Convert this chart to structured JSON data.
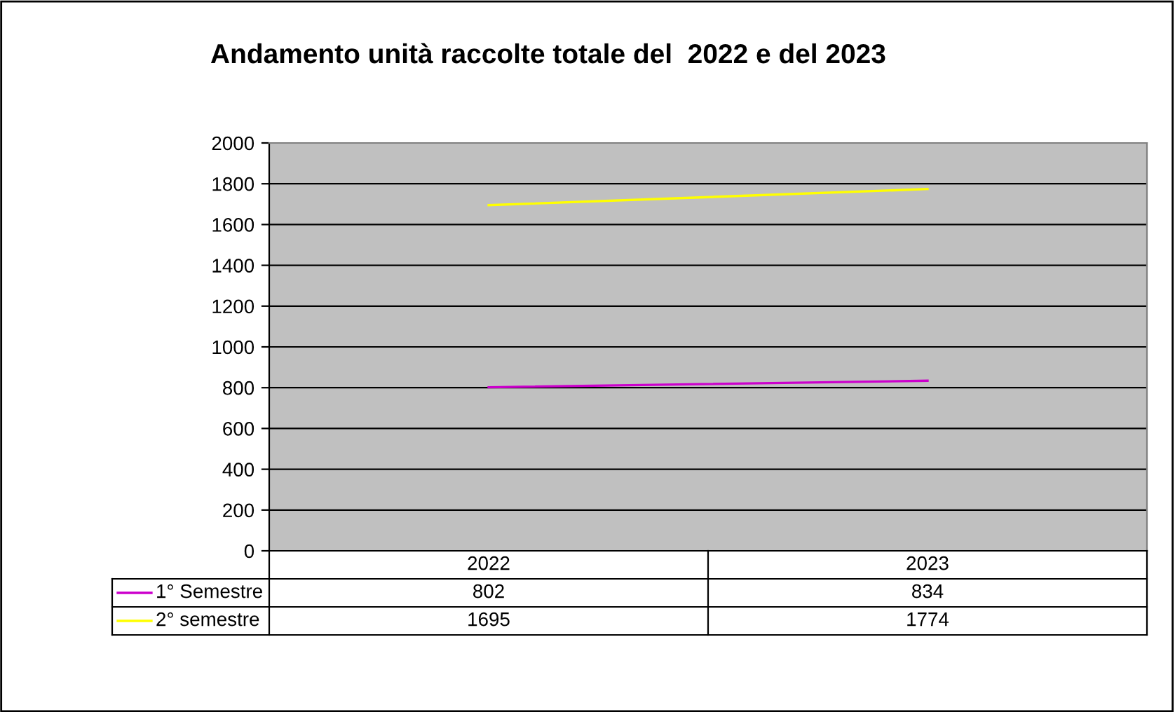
{
  "chart_data": {
    "type": "line",
    "title": "Andamento unità raccolte totale del  2022 e del 2023",
    "categories": [
      "2022",
      "2023"
    ],
    "series": [
      {
        "name": "1° Semestre",
        "color": "#cc00cc",
        "values": [
          802,
          834
        ]
      },
      {
        "name": "2° semestre",
        "color": "#ffff00",
        "values": [
          1695,
          1774
        ]
      }
    ],
    "ylim": [
      0,
      2000
    ],
    "yticks": [
      0,
      200,
      400,
      600,
      800,
      1000,
      1200,
      1400,
      1600,
      1800,
      2000
    ],
    "grid": "y",
    "data_labels": true,
    "legend": "bottom",
    "marker": "none",
    "line_style": "solid"
  }
}
